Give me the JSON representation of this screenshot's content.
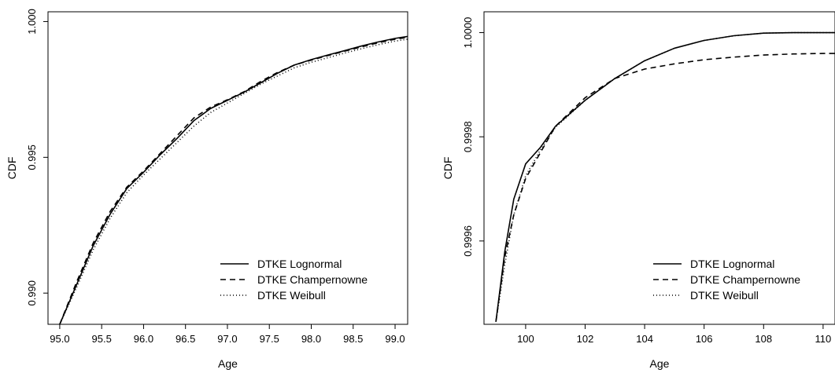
{
  "chart_data": [
    {
      "type": "line",
      "title": "",
      "xlabel": "Age",
      "ylabel": "CDF",
      "xlim": [
        94.86,
        99.15
      ],
      "ylim": [
        0.98885,
        1.00036
      ],
      "x_ticks": [
        "95.0",
        "95.5",
        "96.0",
        "96.5",
        "97.0",
        "97.5",
        "98.0",
        "98.5",
        "99.0"
      ],
      "y_ticks": [
        "0.990",
        "0.995",
        "1.000"
      ],
      "y_tick_values": [
        0.99,
        0.995,
        1.0
      ],
      "grid": false,
      "legend_position": "bottom-right",
      "series": [
        {
          "name": "DTKE Lognormal",
          "linestyle": "solid",
          "x": [
            95.0,
            95.2,
            95.4,
            95.6,
            95.8,
            96.0,
            96.2,
            96.4,
            96.6,
            96.8,
            97.0,
            97.2,
            97.4,
            97.6,
            97.8,
            98.0,
            98.2,
            98.4,
            98.6,
            98.8,
            99.0,
            99.15
          ],
          "y": [
            0.98885,
            0.9903,
            0.99175,
            0.9929,
            0.99385,
            0.99445,
            0.9951,
            0.9957,
            0.99635,
            0.9968,
            0.9971,
            0.9974,
            0.99775,
            0.9981,
            0.9984,
            0.9986,
            0.99877,
            0.99893,
            0.9991,
            0.99925,
            0.99938,
            0.99945
          ]
        },
        {
          "name": "DTKE Champernowne",
          "linestyle": "dashed",
          "x": [
            95.0,
            95.2,
            95.4,
            95.6,
            95.8,
            96.0,
            96.2,
            96.4,
            96.6,
            96.8,
            97.0,
            97.2,
            97.4,
            97.6,
            97.8,
            98.0,
            98.2,
            98.4,
            98.6,
            98.8,
            99.0,
            99.15
          ],
          "y": [
            0.98885,
            0.9904,
            0.99185,
            0.993,
            0.9939,
            0.9945,
            0.99515,
            0.9958,
            0.99645,
            0.99685,
            0.99712,
            0.99742,
            0.9978,
            0.99813,
            0.9984,
            0.99858,
            0.99875,
            0.99891,
            0.99907,
            0.99922,
            0.99935,
            0.99942
          ]
        },
        {
          "name": "DTKE Weibull",
          "linestyle": "dotted",
          "x": [
            95.0,
            95.2,
            95.4,
            95.6,
            95.8,
            96.0,
            96.2,
            96.4,
            96.6,
            96.8,
            97.0,
            97.2,
            97.4,
            97.6,
            97.8,
            98.0,
            98.2,
            98.4,
            98.6,
            98.8,
            99.0,
            99.15
          ],
          "y": [
            0.98885,
            0.9902,
            0.9916,
            0.99275,
            0.9937,
            0.99435,
            0.99495,
            0.99555,
            0.99615,
            0.99665,
            0.997,
            0.99735,
            0.9977,
            0.998,
            0.9983,
            0.9985,
            0.99867,
            0.99884,
            0.999,
            0.99915,
            0.99928,
            0.99935
          ]
        }
      ]
    },
    {
      "type": "line",
      "title": "",
      "xlabel": "Age",
      "ylabel": "CDF",
      "xlim": [
        98.6,
        110.4
      ],
      "ylim": [
        0.99944,
        1.00004
      ],
      "x_ticks": [
        "100",
        "102",
        "104",
        "106",
        "108",
        "110"
      ],
      "y_ticks": [
        "0.9996",
        "0.9998",
        "1.0000"
      ],
      "y_tick_values": [
        0.9996,
        0.9998,
        1.0
      ],
      "grid": false,
      "legend_position": "bottom-right",
      "series": [
        {
          "name": "DTKE Lognormal",
          "linestyle": "solid",
          "x": [
            99.0,
            99.3,
            99.6,
            100.0,
            100.5,
            101.0,
            102.0,
            103.0,
            104.0,
            105.0,
            106.0,
            107.0,
            108.0,
            109.0,
            110.0,
            110.4
          ],
          "y": [
            0.999445,
            0.99958,
            0.99968,
            0.999748,
            0.99978,
            0.99982,
            0.99987,
            0.999912,
            0.999946,
            0.99997,
            0.999985,
            0.999994,
            0.999999,
            1.0,
            1.0,
            1.0
          ]
        },
        {
          "name": "DTKE Champernowne",
          "linestyle": "dashed",
          "x": [
            99.0,
            99.3,
            99.6,
            100.0,
            100.5,
            101.0,
            102.0,
            103.0,
            104.0,
            105.0,
            106.0,
            107.0,
            108.0,
            109.0,
            110.0,
            110.4
          ],
          "y": [
            0.999445,
            0.99957,
            0.99965,
            0.99972,
            0.99977,
            0.99982,
            0.999875,
            0.999912,
            0.99993,
            0.99994,
            0.999948,
            0.999953,
            0.999957,
            0.999959,
            0.99996,
            0.99996
          ]
        },
        {
          "name": "DTKE Weibull",
          "linestyle": "dotted",
          "x": [
            99.0,
            99.3,
            99.6,
            100.0,
            100.5,
            101.0,
            102.0,
            103.0,
            104.0,
            105.0,
            106.0,
            107.0,
            108.0,
            109.0,
            110.0,
            110.4
          ],
          "y": [
            0.999445,
            0.999555,
            0.99965,
            0.999725,
            0.999775,
            0.999818,
            0.99987,
            0.999912,
            0.999946,
            0.99997,
            0.999985,
            0.999994,
            0.999999,
            1.0,
            1.0,
            1.0
          ]
        }
      ]
    }
  ]
}
